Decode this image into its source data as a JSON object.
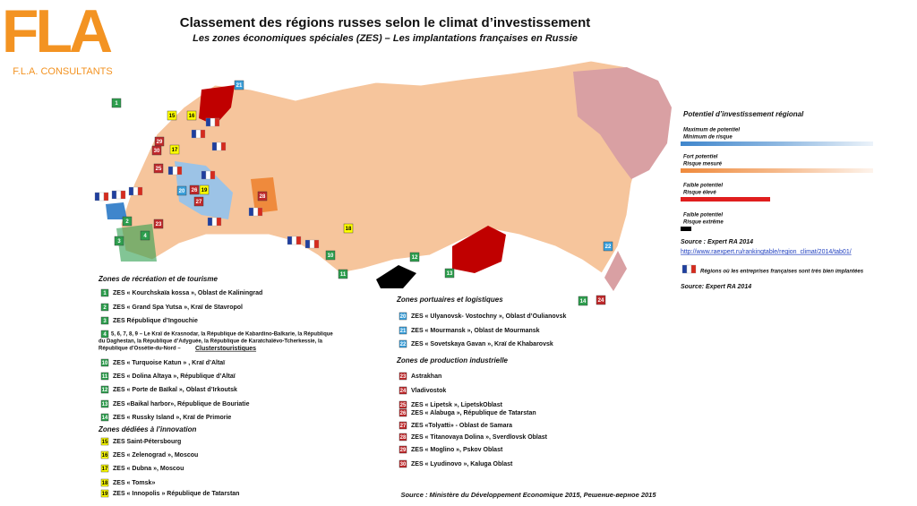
{
  "header": {
    "logo": "FLA",
    "company": "F.L.A. CONSULTANTS",
    "title": "Classement des régions russes selon le climat d’investissement",
    "subtitle": "Les zones économiques spéciales (ZES) – Les implantations françaises en Russie"
  },
  "legend": {
    "title": "Potentiel d’investissement régional",
    "items": [
      {
        "lines": [
          "Maximum de potentiel",
          "Minimum de risque"
        ],
        "color": "#3f86cc"
      },
      {
        "lines": [
          "Fort potentiel",
          "Risque mesuré"
        ],
        "color": "#ef8a3c"
      },
      {
        "lines": [
          "Faible potentiel",
          "Risque élevé"
        ],
        "color": "#e01e1e"
      },
      {
        "lines": [
          "Faible potentiel",
          "Risque extrême"
        ],
        "color": "#000000"
      }
    ],
    "source": "Source : Expert RA 2014",
    "url": "http://www.raexpert.ru/rankingtable/region_climat/2014/tab01/",
    "flag_note": "Régions où les entreprises françaises sont très bien implantées",
    "source2": "Source: Expert RA 2014"
  },
  "zones": [
    {
      "title": "Zones de récréation  et de tourisme",
      "color": "#2e9e4e",
      "items": [
        {
          "num": "1",
          "text": "ZES « Kourchskaïa kossa », Oblast de Kaliningrad"
        },
        {
          "num": "2",
          "text": "ZES « Grand Spa Yutsa », Kraï de Stavropol"
        },
        {
          "num": "3",
          "text": "ZES République d’Ingouchie"
        },
        {
          "num": "4",
          "lines": [
            "5, 6, 7, 8, 9 – Le Kraï de Krasnodar, la République de Kabardino-Balkarie, la République",
            "du Daghestan, la République d’Adyguée, la République de Karatchaïévo-Tcherkessie, la",
            "République d’Ossétie-du-Nord  – "
          ],
          "link": "Clusterstouristiques"
        },
        {
          "num": "10",
          "text": "ZES « Turquoise Katun » , Kraï d’Altaï"
        },
        {
          "num": "11",
          "text": "ZES « Dolina Altaya », République d’Altaï"
        },
        {
          "num": "12",
          "text": "ZES « Porte de Baïkal », Oblast d’Irkoutsk"
        },
        {
          "num": "13",
          "text": "ZES «Baikal harbor», République de Bouriatie"
        },
        {
          "num": "14",
          "text": "ZES « Russky Island », Kraï de Primorie"
        }
      ]
    },
    {
      "title": "Zones dédiées à l’innovation",
      "color": "#ffff00",
      "items": [
        {
          "num": "15",
          "text": "ZES Saint-Pétersbourg"
        },
        {
          "num": "16",
          "text": "ZES « Zelenograd », Moscou"
        },
        {
          "num": "17",
          "text": "ZES « Dubna », Moscou"
        },
        {
          "num": "18",
          "text": "ZES  « Tomsk»"
        },
        {
          "num": "19",
          "text": "ZES « Innopolis » République de Tatarstan"
        }
      ]
    },
    {
      "title": "Zones portuaires et logistiques",
      "color": "#3aa0dc",
      "items": [
        {
          "num": "20",
          "text": "ZES  « Ulyanovsk- Vostochny », Oblast d’Oulianovsk"
        },
        {
          "num": "21",
          "text": "ZES  « Mourmansk », Oblast de Mourmansk"
        },
        {
          "num": "22",
          "text": "ZES  « Sovetskaya Gavan », Kraï de Khabarovsk"
        }
      ]
    },
    {
      "title": "Zones de production industrielle",
      "color": "#c0282a",
      "items": [
        {
          "num": "23",
          "text": "Astrakhan"
        },
        {
          "num": "24",
          "text": "Vladivostok"
        },
        {
          "num": "25",
          "text": "ZES « Lipetsk », LipetskOblast"
        },
        {
          "num": "26",
          "text": "ZES « Alabuga », République de Tatarstan"
        },
        {
          "num": "27",
          "text": "ZES «Tolyatti» - Oblast de Samara"
        },
        {
          "num": "28",
          "text": "ZES « Titanovaya Dolina », Sverdlovsk Oblast"
        },
        {
          "num": "29",
          "text": "ZES « Moglino », Pskov Oblast"
        },
        {
          "num": "30",
          "text": "ZES « Lyudinovo », Kaluga Oblast"
        }
      ]
    }
  ],
  "footer": "Source : Ministère du Développement Economique 2015, Решение-верное 2015"
}
